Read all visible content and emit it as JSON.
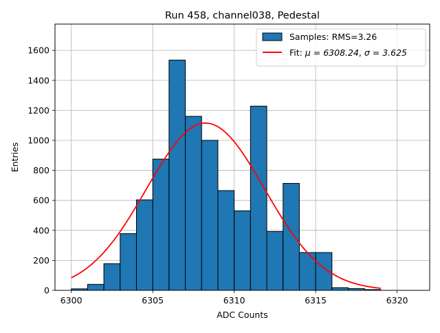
{
  "chart_data": {
    "type": "bar",
    "title": "Run 458, channel038, Pedestal",
    "xlabel": "ADC Counts",
    "ylabel": "Entries",
    "xlim": [
      6299,
      6322
    ],
    "ylim": [
      0,
      1775
    ],
    "xticks": [
      6300,
      6305,
      6310,
      6315,
      6320
    ],
    "yticks": [
      0,
      200,
      400,
      600,
      800,
      1000,
      1200,
      1400,
      1600
    ],
    "grid": true,
    "legend_position": "top-right",
    "histogram": {
      "name": "Samples: RMS=3.26",
      "color": "#1f77b4",
      "edgecolor": "#000000",
      "bin_edges": [
        6300,
        6301,
        6302,
        6303,
        6304,
        6305,
        6306,
        6307,
        6308,
        6309,
        6310,
        6311,
        6312,
        6313,
        6314,
        6315,
        6316,
        6317,
        6318,
        6319
      ],
      "values": [
        10,
        40,
        178,
        378,
        603,
        875,
        1535,
        1160,
        1000,
        665,
        530,
        1228,
        392,
        713,
        252,
        252,
        18,
        12,
        5
      ]
    },
    "fit": {
      "name_prefix": "Fit: ",
      "mu_text": "μ = 6308.24",
      "sigma_text": "σ = 3.625",
      "name": "Fit: μ = 6308.24, σ = 3.625",
      "color": "#ff0000",
      "mu": 6308.24,
      "sigma": 3.625,
      "amplitude": 1115,
      "x_range": [
        6300,
        6319
      ]
    }
  }
}
